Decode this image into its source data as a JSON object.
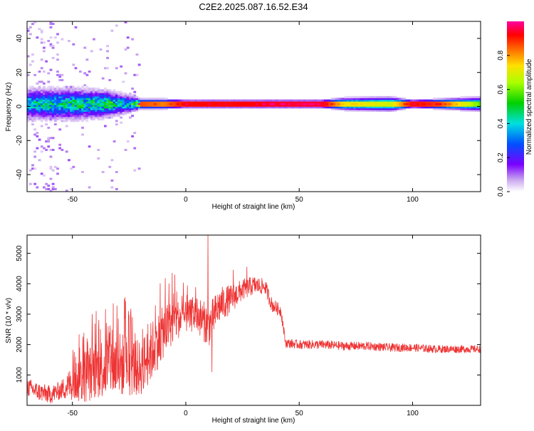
{
  "chart_data": [
    {
      "type": "heatmap",
      "title": "C2E2.2025.087.16.52.E34",
      "xlabel": "Height of straight line (km)",
      "ylabel": "Frequency (Hz)",
      "xlim": [
        -70,
        130
      ],
      "ylim": [
        -50,
        50
      ],
      "xticks": [
        -50,
        0,
        50,
        100
      ],
      "yticks": [
        -40,
        -20,
        0,
        20,
        40
      ],
      "colorbar": {
        "label": "Normalized spectral amplitude",
        "range": [
          0.0,
          1.0
        ],
        "ticks": [
          "0.0",
          "0.2",
          "0.4",
          "0.6",
          "0.8"
        ]
      },
      "band": {
        "center_frequency_hz": 1.5,
        "profile": [
          {
            "x": -68,
            "amp": 0.45,
            "width_hz": 14
          },
          {
            "x": -50,
            "amp": 0.5,
            "width_hz": 14
          },
          {
            "x": -35,
            "amp": 0.55,
            "width_hz": 12
          },
          {
            "x": -25,
            "amp": 0.45,
            "width_hz": 8
          },
          {
            "x": -20,
            "amp": 0.9,
            "width_hz": 4
          },
          {
            "x": -10,
            "amp": 0.85,
            "width_hz": 4
          },
          {
            "x": 0,
            "amp": 0.95,
            "width_hz": 3
          },
          {
            "x": 20,
            "amp": 0.95,
            "width_hz": 3
          },
          {
            "x": 40,
            "amp": 0.98,
            "width_hz": 3
          },
          {
            "x": 60,
            "amp": 0.98,
            "width_hz": 3
          },
          {
            "x": 70,
            "amp": 0.75,
            "width_hz": 5
          },
          {
            "x": 90,
            "amp": 0.7,
            "width_hz": 6
          },
          {
            "x": 100,
            "amp": 0.95,
            "width_hz": 3
          },
          {
            "x": 112,
            "amp": 0.9,
            "width_hz": 4
          },
          {
            "x": 130,
            "amp": 0.6,
            "width_hz": 6
          }
        ]
      }
    },
    {
      "type": "line",
      "xlabel": "Height of straight line (km)",
      "ylabel": "SNR (10 * v/v)",
      "xlim": [
        -70,
        130
      ],
      "ylim": [
        0,
        5600
      ],
      "xticks": [
        -50,
        0,
        50,
        100
      ],
      "yticks": [
        1000,
        2000,
        3000,
        4000,
        5000
      ],
      "series": [
        {
          "name": "SNR",
          "color": "#ee3333",
          "baseline": {
            "x": [
              -70,
              -65,
              -60,
              -55,
              -50,
              -45,
              -40,
              -35,
              -30,
              -25,
              -20,
              -15,
              -10,
              -5,
              0,
              5,
              10,
              15,
              20,
              25,
              30,
              35,
              38,
              42,
              44,
              50,
              60,
              70,
              80,
              90,
              100,
              110,
              120,
              130
            ],
            "y": [
              600,
              450,
              350,
              500,
              750,
              950,
              1150,
              1300,
              1350,
              1300,
              1200,
              1800,
              2400,
              2800,
              2900,
              3000,
              2600,
              3300,
              3500,
              3800,
              3950,
              3900,
              3300,
              3100,
              2050,
              2000,
              2000,
              1950,
              1950,
              1900,
              1900,
              1850,
              1850,
              1850
            ]
          },
          "noise_amplitude": {
            "x": [
              -70,
              -55,
              -45,
              -30,
              -20,
              -15,
              -5,
              0,
              10,
              25,
              35,
              42,
              44,
              130
            ],
            "y": [
              300,
              300,
              900,
              1100,
              900,
              1000,
              700,
              500,
              700,
              350,
              250,
              200,
              150,
              120
            ]
          },
          "spikes": [
            {
              "x": 9.8,
              "y": 5600
            },
            {
              "x": 11.5,
              "y": 1100
            },
            {
              "x": -6,
              "y": 4350
            },
            {
              "x": -32,
              "y": 3350
            },
            {
              "x": 21,
              "y": 4450
            },
            {
              "x": 27,
              "y": 4550
            }
          ]
        }
      ]
    }
  ]
}
